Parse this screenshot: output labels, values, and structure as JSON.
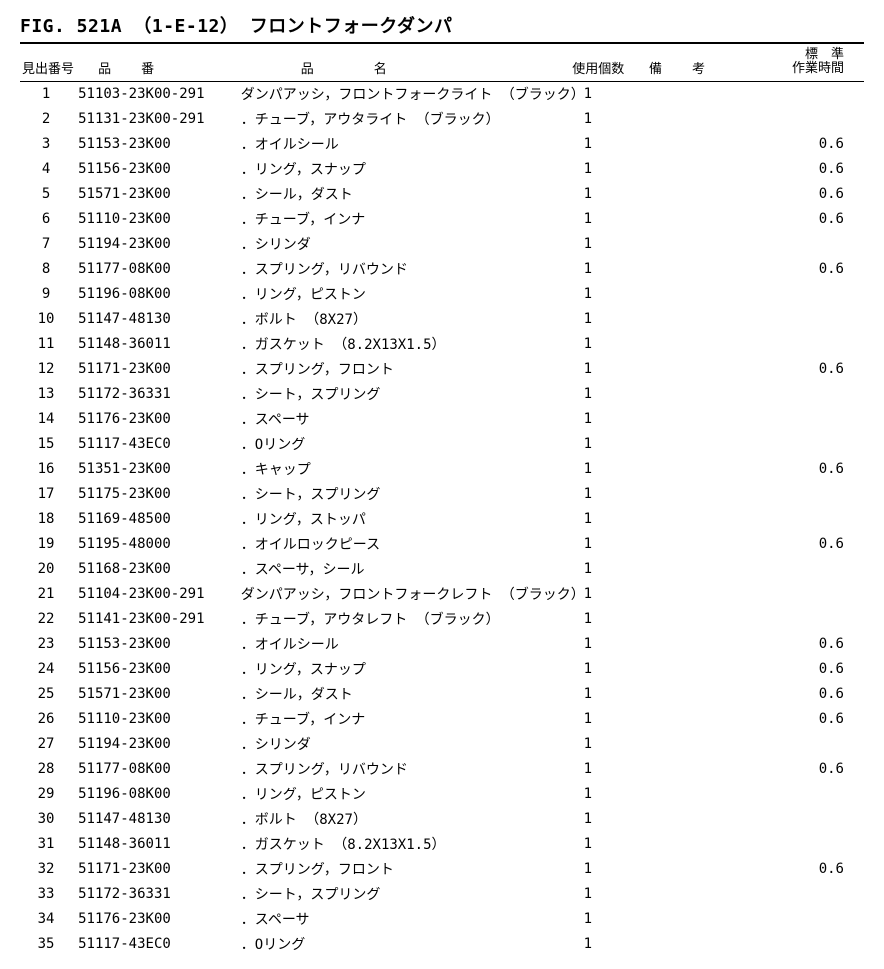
{
  "title": "FIG. 521A （1-E-12） フロントフォークダンパ",
  "columns": {
    "idx": "見出番号",
    "part": "品番",
    "name": "品名",
    "qty": "使用個数",
    "note": "備考",
    "time1": "標　準",
    "time2": "作業時間"
  },
  "rows": [
    {
      "idx": "1",
      "part": "51103-23K00-291",
      "name": "ダンパアッシ，フロントフォークライト （ブラック）",
      "qty": "1",
      "note": "",
      "time": ""
    },
    {
      "idx": "2",
      "part": "51131-23K00-291",
      "name": "．チューブ，アウタライト （ブラック）",
      "qty": "1",
      "note": "",
      "time": ""
    },
    {
      "idx": "3",
      "part": "51153-23K00",
      "name": "．オイルシール",
      "qty": "1",
      "note": "",
      "time": "0.6"
    },
    {
      "idx": "4",
      "part": "51156-23K00",
      "name": "．リング，スナップ",
      "qty": "1",
      "note": "",
      "time": "0.6"
    },
    {
      "idx": "5",
      "part": "51571-23K00",
      "name": "．シール，ダスト",
      "qty": "1",
      "note": "",
      "time": "0.6"
    },
    {
      "idx": "6",
      "part": "51110-23K00",
      "name": "．チューブ，インナ",
      "qty": "1",
      "note": "",
      "time": "0.6"
    },
    {
      "idx": "7",
      "part": "51194-23K00",
      "name": "．シリンダ",
      "qty": "1",
      "note": "",
      "time": ""
    },
    {
      "idx": "8",
      "part": "51177-08K00",
      "name": "．スプリング，リバウンド",
      "qty": "1",
      "note": "",
      "time": "0.6"
    },
    {
      "idx": "9",
      "part": "51196-08K00",
      "name": "．リング，ピストン",
      "qty": "1",
      "note": "",
      "time": ""
    },
    {
      "idx": "10",
      "part": "51147-48130",
      "name": "．ボルト （8X27）",
      "qty": "1",
      "note": "",
      "time": ""
    },
    {
      "idx": "11",
      "part": "51148-36011",
      "name": "．ガスケット （8.2X13X1.5）",
      "qty": "1",
      "note": "",
      "time": ""
    },
    {
      "idx": "12",
      "part": "51171-23K00",
      "name": "．スプリング，フロント",
      "qty": "1",
      "note": "",
      "time": "0.6"
    },
    {
      "idx": "13",
      "part": "51172-36331",
      "name": "．シート，スプリング",
      "qty": "1",
      "note": "",
      "time": ""
    },
    {
      "idx": "14",
      "part": "51176-23K00",
      "name": "．スペーサ",
      "qty": "1",
      "note": "",
      "time": ""
    },
    {
      "idx": "15",
      "part": "51117-43EC0",
      "name": "．Oリング",
      "qty": "1",
      "note": "",
      "time": ""
    },
    {
      "idx": "16",
      "part": "51351-23K00",
      "name": "．キャップ",
      "qty": "1",
      "note": "",
      "time": "0.6"
    },
    {
      "idx": "17",
      "part": "51175-23K00",
      "name": "．シート，スプリング",
      "qty": "1",
      "note": "",
      "time": ""
    },
    {
      "idx": "18",
      "part": "51169-48500",
      "name": "．リング，ストッパ",
      "qty": "1",
      "note": "",
      "time": ""
    },
    {
      "idx": "19",
      "part": "51195-48000",
      "name": "．オイルロックピース",
      "qty": "1",
      "note": "",
      "time": "0.6"
    },
    {
      "idx": "20",
      "part": "51168-23K00",
      "name": "．スペーサ，シール",
      "qty": "1",
      "note": "",
      "time": ""
    },
    {
      "idx": "21",
      "part": "51104-23K00-291",
      "name": "ダンパアッシ，フロントフォークレフト （ブラック）",
      "qty": "1",
      "note": "",
      "time": ""
    },
    {
      "idx": "22",
      "part": "51141-23K00-291",
      "name": "．チューブ，アウタレフト （ブラック）",
      "qty": "1",
      "note": "",
      "time": ""
    },
    {
      "idx": "23",
      "part": "51153-23K00",
      "name": "．オイルシール",
      "qty": "1",
      "note": "",
      "time": "0.6"
    },
    {
      "idx": "24",
      "part": "51156-23K00",
      "name": "．リング，スナップ",
      "qty": "1",
      "note": "",
      "time": "0.6"
    },
    {
      "idx": "25",
      "part": "51571-23K00",
      "name": "．シール，ダスト",
      "qty": "1",
      "note": "",
      "time": "0.6"
    },
    {
      "idx": "26",
      "part": "51110-23K00",
      "name": "．チューブ，インナ",
      "qty": "1",
      "note": "",
      "time": "0.6"
    },
    {
      "idx": "27",
      "part": "51194-23K00",
      "name": "．シリンダ",
      "qty": "1",
      "note": "",
      "time": ""
    },
    {
      "idx": "28",
      "part": "51177-08K00",
      "name": "．スプリング，リバウンド",
      "qty": "1",
      "note": "",
      "time": "0.6"
    },
    {
      "idx": "29",
      "part": "51196-08K00",
      "name": "．リング，ピストン",
      "qty": "1",
      "note": "",
      "time": ""
    },
    {
      "idx": "30",
      "part": "51147-48130",
      "name": "．ボルト （8X27）",
      "qty": "1",
      "note": "",
      "time": ""
    },
    {
      "idx": "31",
      "part": "51148-36011",
      "name": "．ガスケット （8.2X13X1.5）",
      "qty": "1",
      "note": "",
      "time": ""
    },
    {
      "idx": "32",
      "part": "51171-23K00",
      "name": "．スプリング，フロント",
      "qty": "1",
      "note": "",
      "time": "0.6"
    },
    {
      "idx": "33",
      "part": "51172-36331",
      "name": "．シート，スプリング",
      "qty": "1",
      "note": "",
      "time": ""
    },
    {
      "idx": "34",
      "part": "51176-23K00",
      "name": "．スペーサ",
      "qty": "1",
      "note": "",
      "time": ""
    },
    {
      "idx": "35",
      "part": "51117-43EC0",
      "name": "．Oリング",
      "qty": "1",
      "note": "",
      "time": ""
    }
  ]
}
